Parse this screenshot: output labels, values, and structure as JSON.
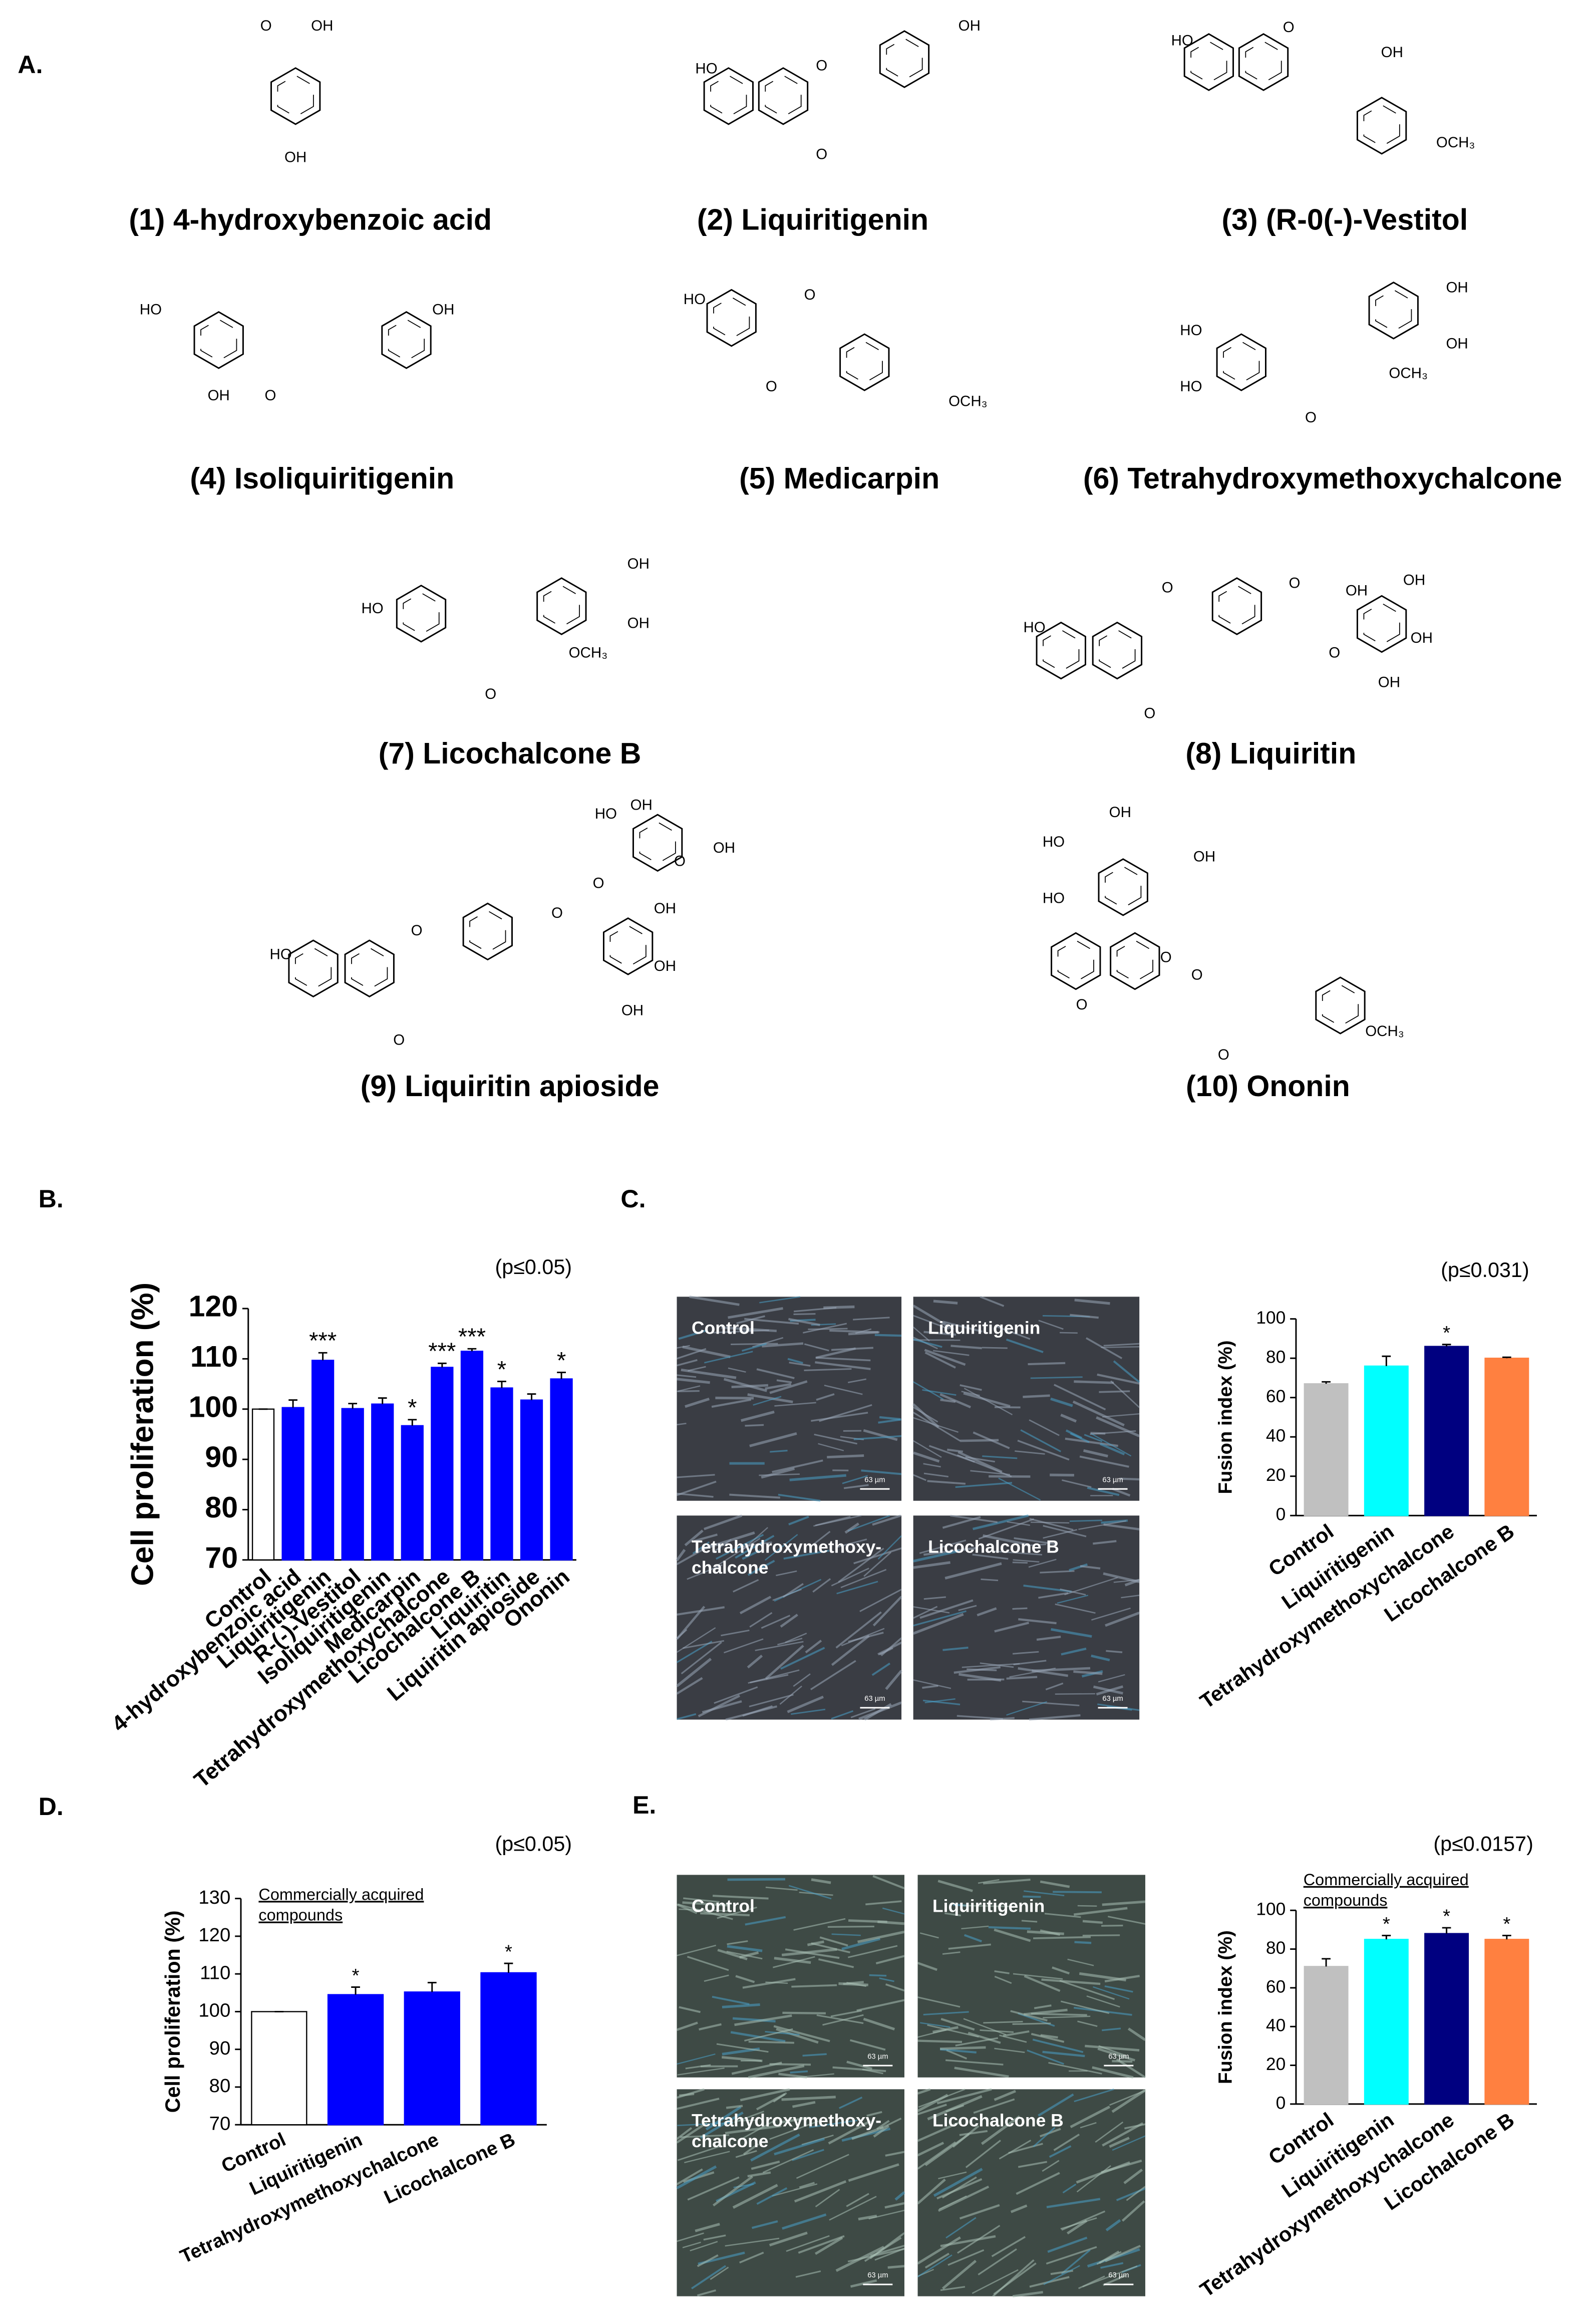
{
  "panel_labels": [
    "A.",
    "B.",
    "C.",
    "D.",
    "E."
  ],
  "compounds": [
    {
      "name": "(1) 4-hydroxybenzoic acid",
      "atoms": [
        "O",
        "OH",
        "OH"
      ]
    },
    {
      "name": "(2) Liquiritigenin",
      "atoms": [
        "HO",
        "O",
        "OH",
        "O"
      ]
    },
    {
      "name": "(3) (R-0(-)-Vestitol",
      "atoms": [
        "HO",
        "O",
        "OH",
        "OCH₃"
      ]
    },
    {
      "name": "(4) Isoliquiritigenin",
      "atoms": [
        "HO",
        "OH",
        "O",
        "OH"
      ]
    },
    {
      "name": "(5) Medicarpin",
      "atoms": [
        "HO",
        "O",
        "O",
        "OCH₃"
      ]
    },
    {
      "name": "(6) Tetrahydroxymethoxychalcone",
      "atoms": [
        "HO",
        "HO",
        "O",
        "OCH₃",
        "OH",
        "OH"
      ]
    },
    {
      "name": "(7) Licochalcone B",
      "atoms": [
        "HO",
        "O",
        "OCH₃",
        "OH",
        "OH"
      ]
    },
    {
      "name": "(8) Liquiritin",
      "atoms": [
        "HO",
        "O",
        "O",
        "O",
        "O",
        "OH",
        "OH",
        "OH",
        "OH"
      ]
    },
    {
      "name": "(9) Liquiritin apioside",
      "atoms": [
        "HO",
        "O",
        "O",
        "O",
        "O",
        "O",
        "HO",
        "OH",
        "OH",
        "OH",
        "OH",
        "OH"
      ]
    },
    {
      "name": "(10) Ononin",
      "atoms": [
        "OH",
        "HO",
        "OH",
        "HO",
        "O",
        "O",
        "O",
        "O",
        "OCH₃"
      ]
    }
  ],
  "micrographs": [
    {
      "panels": [
        {
          "lines": [
            "Control"
          ]
        },
        {
          "lines": [
            "Liquiritigenin"
          ]
        },
        {
          "lines": [
            "Tetrahydroxymethoxy-",
            "chalcone"
          ]
        },
        {
          "lines": [
            "Licochalcone B"
          ]
        }
      ],
      "scale_label": "63 µm"
    },
    {
      "panels": [
        {
          "lines": [
            "Control"
          ]
        },
        {
          "lines": [
            "Liquiritigenin"
          ]
        },
        {
          "lines": [
            "Tetrahydroxymethoxy-",
            "chalcone"
          ]
        },
        {
          "lines": [
            "Licochalcone B"
          ]
        }
      ],
      "scale_label": "63 µm"
    }
  ],
  "chart_data": [
    {
      "type": "bar",
      "note": "(p≤0.05)",
      "y_label": "Cell proliferation (%)",
      "categories": [
        "Control",
        "4-hydroxybenzoic acid",
        "Liquiritigenin",
        "R-(-)-Vestitol",
        "Isoliquiritigenin",
        "Medicarpin",
        "Tetrahydroxymethoxychalcone",
        "Licochalcone B",
        "Liquiritin",
        "Liquiritin apioside",
        "Ononin"
      ],
      "values": [
        100,
        100.3,
        109.7,
        100.1,
        101,
        96.7,
        108.3,
        111.5,
        104.2,
        101.8,
        106
      ],
      "errors": [
        0,
        1.5,
        1.5,
        1,
        1.2,
        1.2,
        0.8,
        0.5,
        1.3,
        1.2,
        1.3
      ],
      "annotations": [
        null,
        null,
        "***",
        null,
        null,
        "*",
        "***",
        "***",
        "*",
        null,
        "*"
      ],
      "colors": [
        "#ffffff",
        "#0000ff",
        "#0000ff",
        "#0000ff",
        "#0000ff",
        "#0000ff",
        "#0000ff",
        "#0000ff",
        "#0000ff",
        "#0000ff",
        "#0000ff"
      ],
      "ylim": [
        70,
        120
      ],
      "yticks": [
        70,
        80,
        90,
        100,
        110,
        120
      ]
    },
    {
      "type": "bar",
      "note": "(p≤0.031)",
      "y_label": "Fusion index (%)",
      "categories": [
        "Control",
        "Liquiritigenin",
        "Tetrahydroxymethoxychalcone",
        "Licochalcone B"
      ],
      "values": [
        67,
        76,
        86,
        80
      ],
      "errors": [
        1,
        5,
        1,
        0.5
      ],
      "annotations": [
        null,
        null,
        "*",
        null
      ],
      "colors": [
        "#c0c0c0",
        "#00ffff",
        "#000080",
        "#ff8040"
      ],
      "ylim": [
        0,
        100
      ],
      "yticks": [
        0,
        20,
        40,
        60,
        80,
        100
      ]
    },
    {
      "type": "bar",
      "note": "(p≤0.05)",
      "y_label": "Cell proliferation (%)",
      "caption": [
        "Commercially acquired",
        "compounds"
      ],
      "categories": [
        "Control",
        "Liquiritigenin",
        "Tetrahydroxymethoxychalcone",
        "Licochalcone B"
      ],
      "values": [
        100,
        104.5,
        105.2,
        110.3
      ],
      "errors": [
        0,
        2,
        2.5,
        2.5
      ],
      "annotations": [
        null,
        "*",
        null,
        "*"
      ],
      "colors": [
        "#ffffff",
        "#0000ff",
        "#0000ff",
        "#0000ff"
      ],
      "ylim": [
        70,
        130
      ],
      "yticks": [
        70,
        80,
        90,
        100,
        110,
        120,
        130
      ]
    },
    {
      "type": "bar",
      "note": "(p≤0.0157)",
      "y_label": "Fusion index (%)",
      "caption": [
        "Commercially acquired",
        "compounds"
      ],
      "categories": [
        "Control",
        "Liquiritigenin",
        "Tetrahydroxymethoxychalcone",
        "Licochalcone B"
      ],
      "values": [
        71,
        85,
        88,
        85
      ],
      "errors": [
        4,
        2,
        3,
        2
      ],
      "annotations": [
        null,
        "*",
        "*",
        "*"
      ],
      "colors": [
        "#c0c0c0",
        "#00ffff",
        "#000080",
        "#ff8040"
      ],
      "ylim": [
        0,
        100
      ],
      "yticks": [
        0,
        20,
        40,
        60,
        80,
        100
      ]
    }
  ]
}
